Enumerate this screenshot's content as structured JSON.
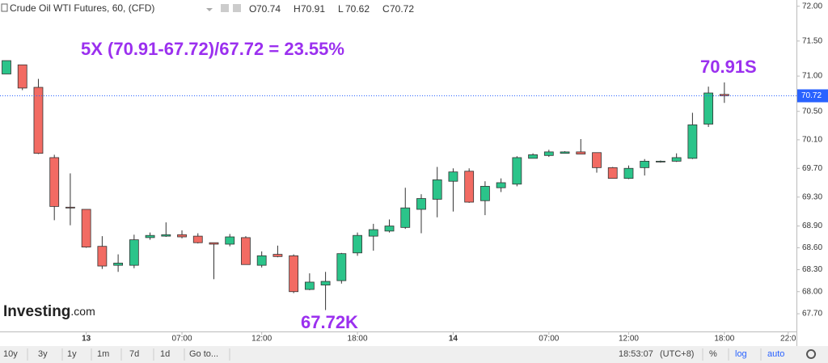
{
  "header": {
    "title": "Crude Oil WTI Futures, 60, (CFD)",
    "ohlc": [
      {
        "key": "O",
        "value": 70.74
      },
      {
        "key": "H",
        "value": 70.91
      },
      {
        "key": "L",
        "value": 70.62
      },
      {
        "key": "C",
        "value": 70.72
      }
    ]
  },
  "watermark": {
    "brand": "Investing",
    "suffix": ".com"
  },
  "chart_data": {
    "type": "candlestick",
    "annotations": [
      "5X (70.91-67.72)/67.72 = 23.55%",
      "70.91S",
      "67.72K"
    ],
    "open": [
      71.03,
      71.16,
      70.84,
      69.85,
      69.16,
      69.13,
      68.62,
      68.36,
      68.36,
      68.74,
      68.76,
      68.78,
      68.76,
      68.67,
      68.65,
      68.74,
      68.36,
      68.51,
      68.49,
      68.03,
      68.09,
      68.15,
      68.53,
      68.76,
      68.83,
      68.88,
      69.13,
      69.27,
      69.52,
      69.66,
      69.25,
      69.43,
      69.48,
      69.84,
      69.88,
      69.91,
      69.93,
      69.92,
      69.71,
      69.56,
      69.71,
      69.8,
      69.8,
      69.84,
      70.32,
      70.74
    ],
    "high": [
      71.22,
      71.16,
      70.96,
      69.89,
      69.63,
      69.13,
      68.76,
      68.51,
      68.78,
      68.81,
      68.95,
      68.84,
      68.8,
      68.67,
      68.79,
      68.76,
      68.55,
      68.63,
      68.51,
      68.25,
      68.27,
      68.53,
      68.81,
      68.93,
      68.99,
      69.43,
      69.34,
      69.72,
      69.7,
      69.7,
      69.52,
      69.56,
      69.87,
      69.91,
      69.96,
      69.94,
      70.11,
      69.92,
      69.72,
      69.74,
      69.83,
      69.81,
      69.91,
      70.48,
      70.85,
      70.91
    ],
    "low": [
      71.03,
      70.8,
      69.9,
      68.98,
      68.91,
      68.6,
      68.31,
      68.27,
      68.32,
      68.71,
      68.75,
      68.73,
      68.66,
      68.17,
      68.62,
      68.37,
      68.33,
      68.47,
      67.98,
      68.02,
      67.75,
      68.11,
      68.49,
      68.56,
      68.81,
      68.86,
      68.8,
      69.02,
      69.1,
      69.22,
      69.05,
      69.37,
      69.45,
      69.84,
      69.86,
      69.91,
      69.9,
      69.64,
      69.56,
      69.55,
      69.6,
      69.78,
      69.79,
      69.83,
      70.28,
      70.62
    ],
    "close": [
      71.22,
      70.83,
      69.91,
      69.17,
      69.15,
      68.61,
      68.35,
      68.39,
      68.71,
      68.77,
      68.78,
      68.75,
      68.67,
      68.65,
      68.75,
      68.37,
      68.49,
      68.48,
      68.0,
      68.13,
      68.14,
      68.52,
      68.77,
      68.85,
      68.9,
      69.15,
      69.28,
      69.54,
      69.65,
      69.23,
      69.45,
      69.5,
      69.85,
      69.89,
      69.93,
      69.93,
      69.9,
      69.71,
      69.56,
      69.7,
      69.8,
      69.8,
      69.85,
      70.31,
      70.76,
      70.72
    ],
    "up_color": "#2bc48a",
    "down_color": "#f26b63",
    "last": 70.72,
    "last_color": "#2962ff",
    "log": true,
    "ylim": [
      67.46,
      72.09
    ],
    "yticks": [
      {
        "value": 72,
        "label": "72.00"
      },
      {
        "value": 71.5,
        "label": "71.50"
      },
      {
        "value": 71,
        "label": "71.00"
      },
      {
        "value": 70.5,
        "label": "70.50"
      },
      {
        "value": 70.1,
        "label": "70.10"
      },
      {
        "value": 69.7,
        "label": "69.70"
      },
      {
        "value": 69.3,
        "label": "69.30"
      },
      {
        "value": 68.9,
        "label": "68.90"
      },
      {
        "value": 68.6,
        "label": "68.60"
      },
      {
        "value": 68.3,
        "label": "68.30"
      },
      {
        "value": 68,
        "label": "68.00"
      },
      {
        "value": 67.7,
        "label": "67.70"
      }
    ],
    "xticks": [
      {
        "value": 5,
        "label": "13"
      },
      {
        "value": 11,
        "label": "07:00"
      },
      {
        "value": 16,
        "label": "12:00"
      },
      {
        "value": 22,
        "label": "18:00"
      },
      {
        "value": 28,
        "label": "14"
      },
      {
        "value": 34,
        "label": "07:00"
      },
      {
        "value": 39,
        "label": "12:00"
      },
      {
        "value": 45,
        "label": "18:00"
      },
      {
        "value": 49,
        "label": "22:0"
      }
    ]
  },
  "toolbar": {
    "ranges": [
      "10y",
      "3y",
      "1y",
      "1m",
      "7d",
      "1d",
      "Go to..."
    ],
    "time": "18:53:07",
    "zone": "(UTC+8)",
    "options": [
      "%",
      "log",
      "auto"
    ]
  }
}
